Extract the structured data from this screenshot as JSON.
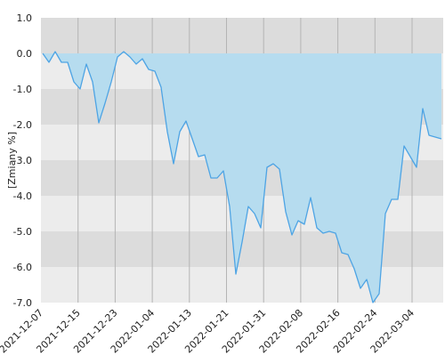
{
  "chart_data": {
    "type": "area",
    "title": "",
    "xlabel": "",
    "ylabel": "[Zmiany %]",
    "ylim": [
      -7.0,
      1.0
    ],
    "yticks": [
      "1.0",
      "0.0",
      "-1.0",
      "-2.0",
      "-3.0",
      "-4.0",
      "-5.0",
      "-6.0",
      "-7.0"
    ],
    "xticks": [
      "2021-12-07",
      "2021-12-15",
      "2021-12-23",
      "2022-01-04",
      "2022-01-13",
      "2022-01-21",
      "2022-01-31",
      "2022-02-08",
      "2022-02-16",
      "2022-02-24",
      "2022-03-04"
    ],
    "grid": true,
    "band_colors": [
      "#dcdcdc",
      "#ececec"
    ],
    "line_color": "#4ea4e4",
    "fill_color": "#b6dcef",
    "series": [
      {
        "values": [
          0.0,
          -0.25,
          0.05,
          -0.25,
          -0.25,
          -0.8,
          -1.0,
          -0.3,
          -0.8,
          -1.95,
          -1.4,
          -0.8,
          -0.1,
          0.05,
          -0.1,
          -0.3,
          -0.15,
          -0.45,
          -0.5,
          -0.95,
          -2.2,
          -3.1,
          -2.2,
          -1.9,
          -2.4,
          -2.9,
          -2.85,
          -3.5,
          -3.5,
          -3.3,
          -4.3,
          -6.2,
          -5.3,
          -4.3,
          -4.5,
          -4.9,
          -3.2,
          -3.1,
          -3.25,
          -4.45,
          -5.1,
          -4.7,
          -4.8,
          -4.05,
          -4.9,
          -5.05,
          -5.0,
          -5.05,
          -5.6,
          -5.65,
          -6.05,
          -6.6,
          -6.35,
          -7.0,
          -6.75,
          -4.5,
          -4.1,
          -4.1,
          -2.6,
          -2.9,
          -3.2,
          -1.55,
          -2.3,
          -2.35,
          -2.4
        ]
      }
    ]
  }
}
